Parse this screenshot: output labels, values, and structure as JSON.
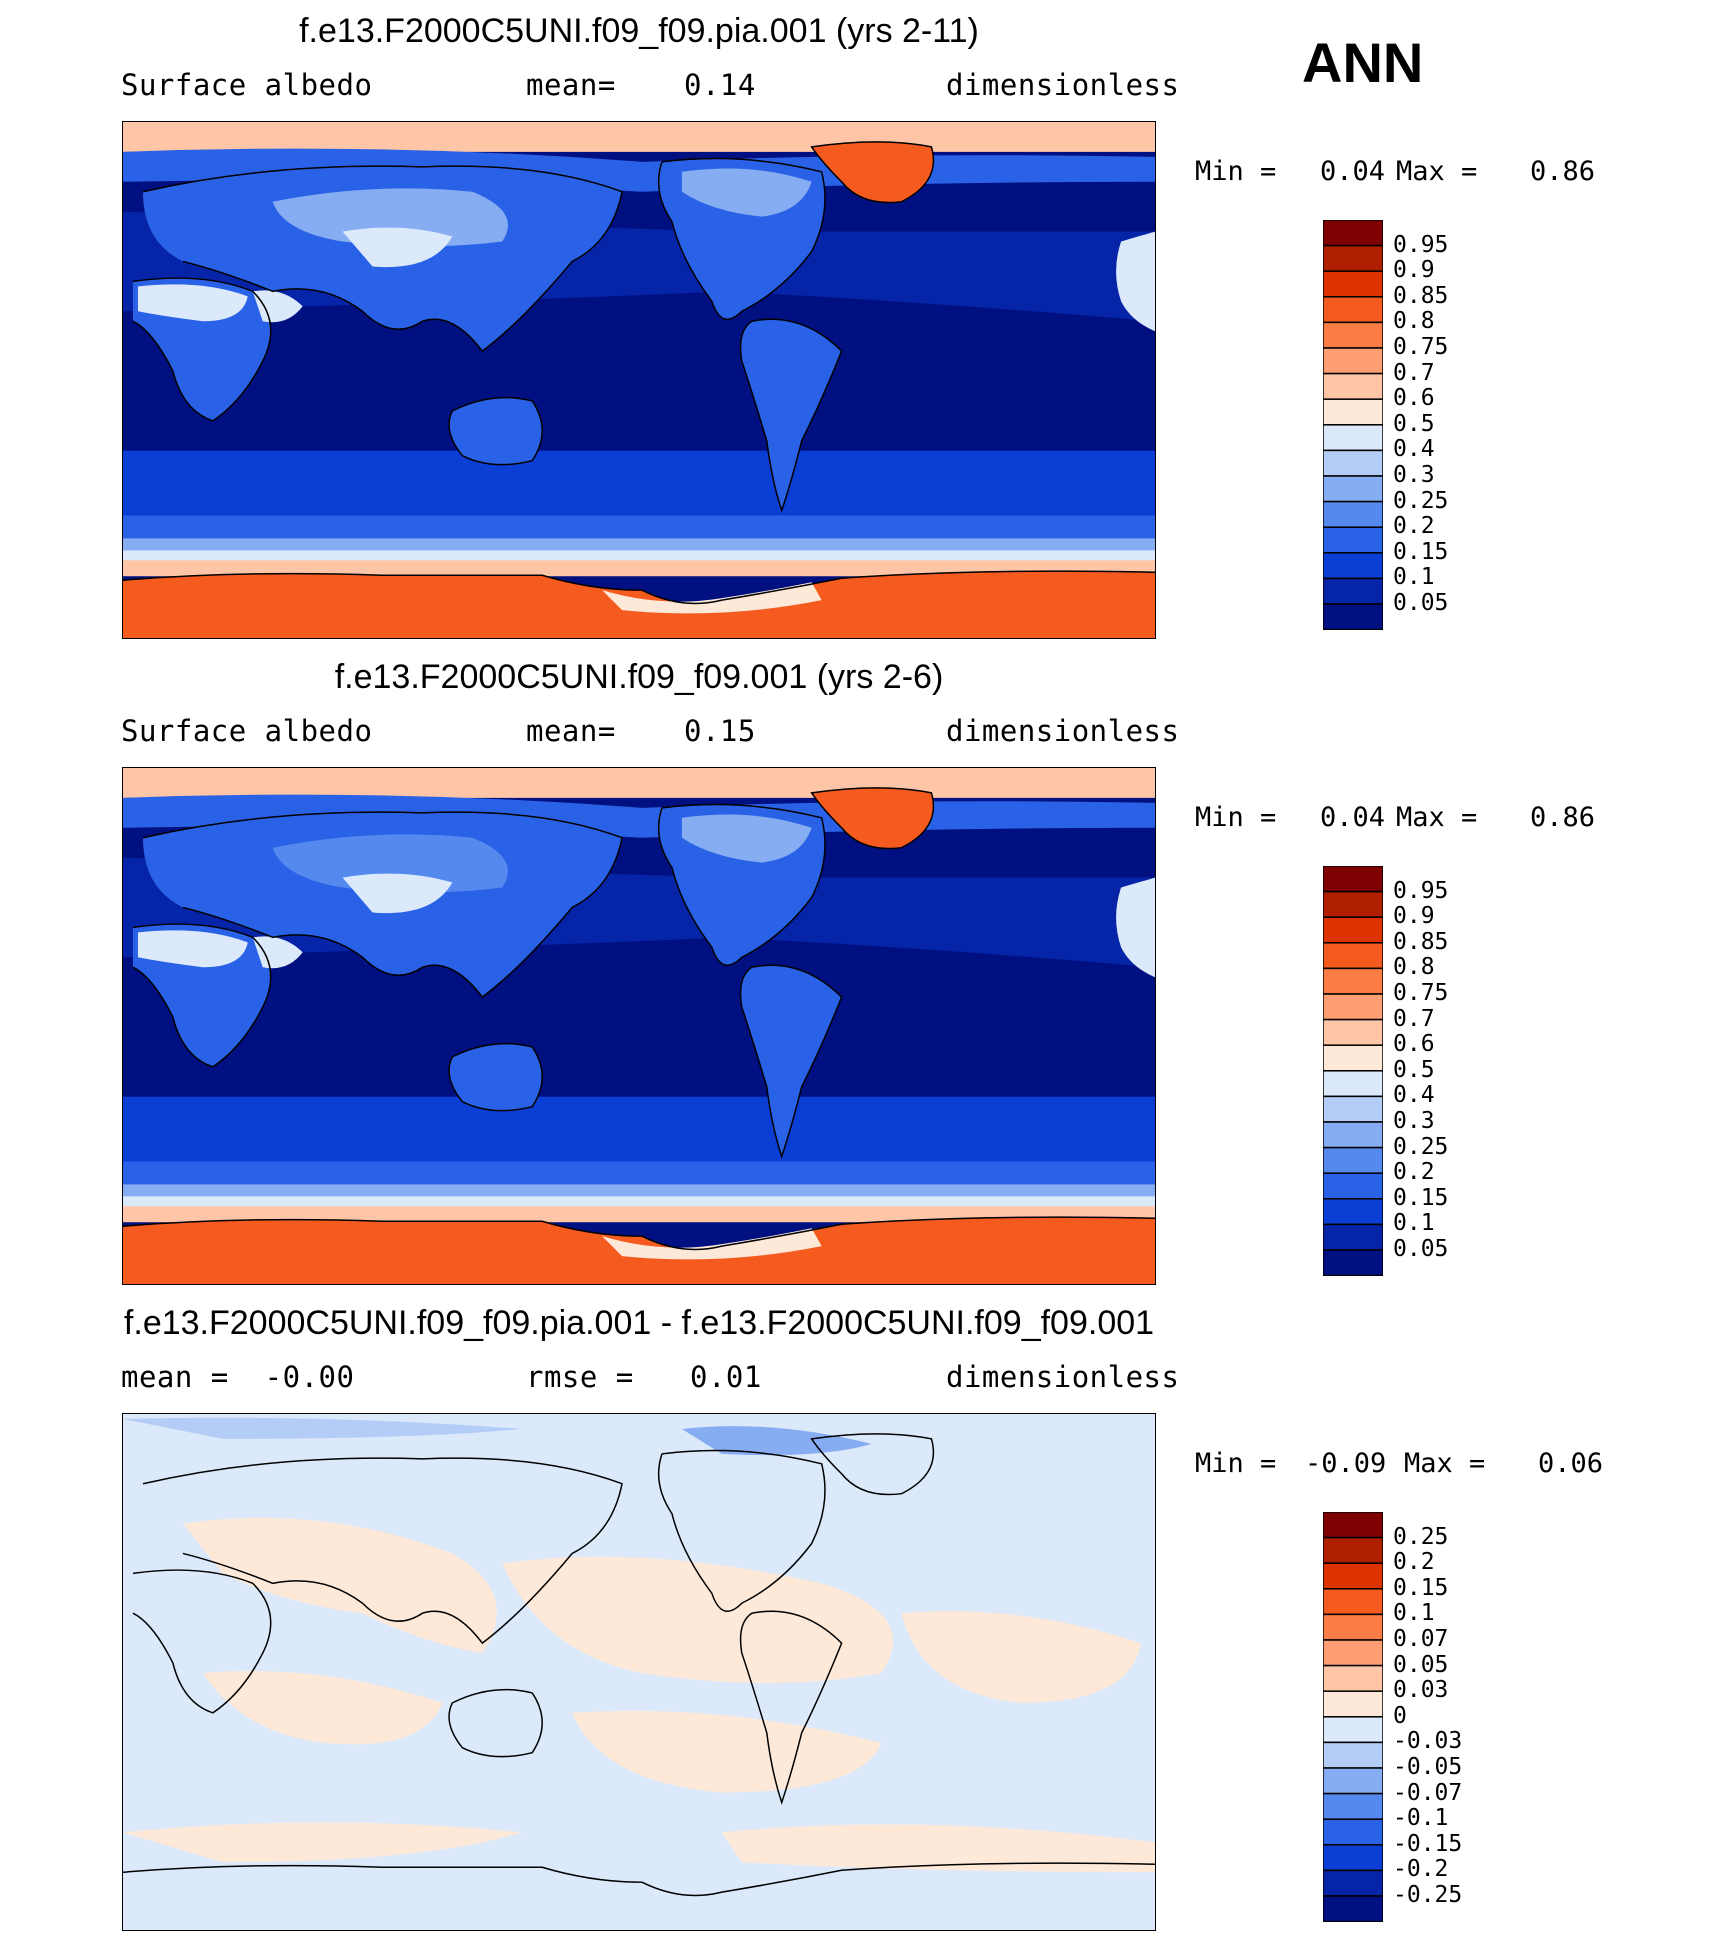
{
  "season": "ANN",
  "chart_data": [
    {
      "type": "heatmap",
      "title": "f.e13.F2000C5UNI.f09_f09.pia.001 (yrs 2-11)",
      "variable": "Surface albedo",
      "stat_label": "mean=",
      "stat_value": "0.14",
      "units": "dimensionless",
      "min_label": "Min =",
      "min_value": "0.04",
      "max_label": "Max =",
      "max_value": "0.86",
      "colorbar_levels": [
        "0.95",
        "0.9",
        "0.85",
        "0.8",
        "0.75",
        "0.7",
        "0.6",
        "0.5",
        "0.4",
        "0.3",
        "0.25",
        "0.2",
        "0.15",
        "0.1",
        "0.05"
      ],
      "colorbar_colors": [
        "#7f0000",
        "#b01e00",
        "#dd3300",
        "#f55a1f",
        "#fb7c45",
        "#fd9f73",
        "#fec6a6",
        "#fee9d9",
        "#dbe9fb",
        "#b3cdf7",
        "#86acf2",
        "#5589ee",
        "#2a62e7",
        "#0b3ed4",
        "#0624a8",
        "#001080"
      ]
    },
    {
      "type": "heatmap",
      "title": "f.e13.F2000C5UNI.f09_f09.001 (yrs 2-6)",
      "variable": "Surface albedo",
      "stat_label": "mean=",
      "stat_value": "0.15",
      "units": "dimensionless",
      "min_label": "Min =",
      "min_value": "0.04",
      "max_label": "Max =",
      "max_value": "0.86",
      "colorbar_levels": [
        "0.95",
        "0.9",
        "0.85",
        "0.8",
        "0.75",
        "0.7",
        "0.6",
        "0.5",
        "0.4",
        "0.3",
        "0.25",
        "0.2",
        "0.15",
        "0.1",
        "0.05"
      ],
      "colorbar_colors": [
        "#7f0000",
        "#b01e00",
        "#dd3300",
        "#f55a1f",
        "#fb7c45",
        "#fd9f73",
        "#fec6a6",
        "#fee9d9",
        "#dbe9fb",
        "#b3cdf7",
        "#86acf2",
        "#5589ee",
        "#2a62e7",
        "#0b3ed4",
        "#0624a8",
        "#001080"
      ]
    },
    {
      "type": "heatmap",
      "title": "f.e13.F2000C5UNI.f09_f09.pia.001 - f.e13.F2000C5UNI.f09_f09.001",
      "variable": "mean =  -0.00",
      "stat_label": "rmse =",
      "stat_value": "0.01",
      "units": "dimensionless",
      "min_label": "Min =",
      "min_value": "-0.09",
      "max_label": "Max =",
      "max_value": "0.06",
      "colorbar_levels": [
        "0.25",
        "0.2",
        "0.15",
        "0.1",
        "0.07",
        "0.05",
        "0.03",
        "0",
        "-0.03",
        "-0.05",
        "-0.07",
        "-0.1",
        "-0.15",
        "-0.2",
        "-0.25"
      ],
      "colorbar_colors": [
        "#7f0000",
        "#b01e00",
        "#dd3300",
        "#f55a1f",
        "#fb7c45",
        "#fd9f73",
        "#fec6a6",
        "#fee9d9",
        "#dbe9fb",
        "#b3cdf7",
        "#86acf2",
        "#5589ee",
        "#2a62e7",
        "#0b3ed4",
        "#0624a8",
        "#001080"
      ]
    }
  ]
}
